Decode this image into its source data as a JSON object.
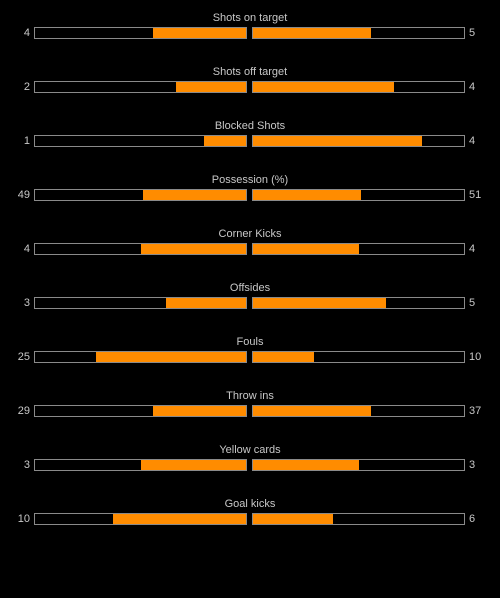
{
  "colors": {
    "background": "#000000",
    "text": "#c8c8c8",
    "bar_border": "#8a8a8a",
    "bar_fill": "#ff8c00"
  },
  "stats": [
    {
      "label": "Shots on target",
      "home": "4",
      "away": "5",
      "home_fill": 0.44,
      "away_fill": 0.56
    },
    {
      "label": "Shots off target",
      "home": "2",
      "away": "4",
      "home_fill": 0.33,
      "away_fill": 0.67
    },
    {
      "label": "Blocked Shots",
      "home": "1",
      "away": "4",
      "home_fill": 0.2,
      "away_fill": 0.8
    },
    {
      "label": "Possession (%)",
      "home": "49",
      "away": "51",
      "home_fill": 0.49,
      "away_fill": 0.51
    },
    {
      "label": "Corner Kicks",
      "home": "4",
      "away": "4",
      "home_fill": 0.5,
      "away_fill": 0.5
    },
    {
      "label": "Offsides",
      "home": "3",
      "away": "5",
      "home_fill": 0.38,
      "away_fill": 0.63
    },
    {
      "label": "Fouls",
      "home": "25",
      "away": "10",
      "home_fill": 0.71,
      "away_fill": 0.29
    },
    {
      "label": "Throw ins",
      "home": "29",
      "away": "37",
      "home_fill": 0.44,
      "away_fill": 0.56
    },
    {
      "label": "Yellow cards",
      "home": "3",
      "away": "3",
      "home_fill": 0.5,
      "away_fill": 0.5
    },
    {
      "label": "Goal kicks",
      "home": "10",
      "away": "6",
      "home_fill": 0.63,
      "away_fill": 0.38
    }
  ]
}
